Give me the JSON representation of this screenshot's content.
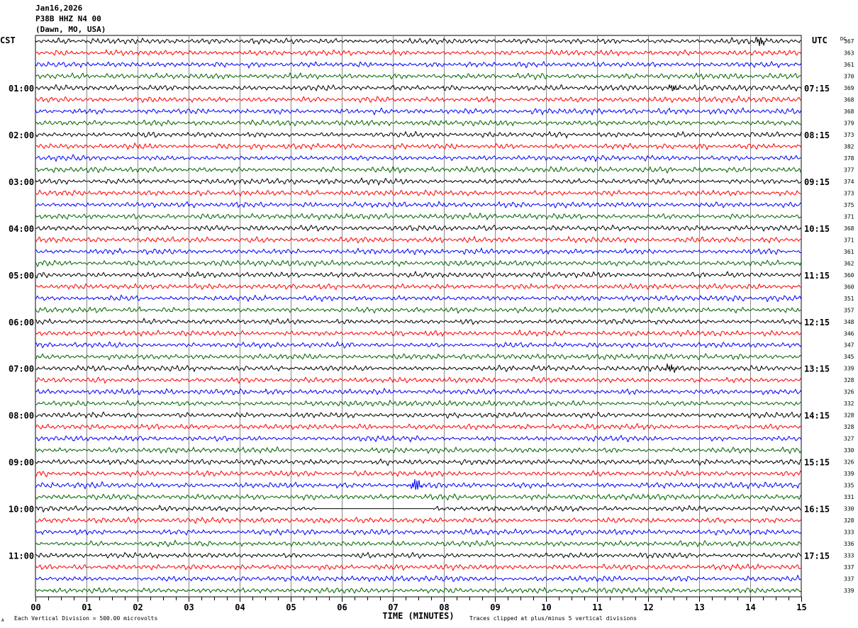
{
  "header": {
    "date": "Jan16,2026",
    "station": "P38B HHZ N4 00",
    "location": "(Dawn, MO, USA)"
  },
  "chart_data": {
    "type": "line",
    "title": "P38B HHZ N4 00 helicorder",
    "left_timezone": "CST",
    "right_timezone": "UTC",
    "dc_label": "DC",
    "xlabel": "TIME (MINUTES)",
    "xlim": [
      0,
      15
    ],
    "x_ticks": [
      "00",
      "01",
      "02",
      "03",
      "04",
      "05",
      "06",
      "07",
      "08",
      "09",
      "10",
      "11",
      "12",
      "13",
      "14",
      "15"
    ],
    "minor_ticks_per_minute": 4,
    "left_hour_labels": [
      {
        "trace": 4,
        "label": "01:00"
      },
      {
        "trace": 8,
        "label": "02:00"
      },
      {
        "trace": 12,
        "label": "03:00"
      },
      {
        "trace": 16,
        "label": "04:00"
      },
      {
        "trace": 20,
        "label": "05:00"
      },
      {
        "trace": 24,
        "label": "06:00"
      },
      {
        "trace": 28,
        "label": "07:00"
      },
      {
        "trace": 32,
        "label": "08:00"
      },
      {
        "trace": 36,
        "label": "09:00"
      },
      {
        "trace": 40,
        "label": "10:00"
      },
      {
        "trace": 44,
        "label": "11:00"
      }
    ],
    "right_hour_labels": [
      {
        "trace": 4,
        "label": "07:15"
      },
      {
        "trace": 8,
        "label": "08:15"
      },
      {
        "trace": 12,
        "label": "09:15"
      },
      {
        "trace": 16,
        "label": "10:15"
      },
      {
        "trace": 20,
        "label": "11:15"
      },
      {
        "trace": 24,
        "label": "12:15"
      },
      {
        "trace": 28,
        "label": "13:15"
      },
      {
        "trace": 32,
        "label": "14:15"
      },
      {
        "trace": 36,
        "label": "15:15"
      },
      {
        "trace": 40,
        "label": "16:15"
      },
      {
        "trace": 44,
        "label": "17:15"
      }
    ],
    "trace_colors": [
      "#000000",
      "#ff0000",
      "#0000ff",
      "#006400"
    ],
    "dc_values": [
      367,
      363,
      361,
      370,
      369,
      368,
      368,
      379,
      373,
      382,
      378,
      377,
      374,
      373,
      375,
      371,
      368,
      371,
      361,
      362,
      360,
      360,
      351,
      357,
      348,
      346,
      347,
      345,
      339,
      328,
      326,
      332,
      328,
      328,
      327,
      330,
      326,
      339,
      335,
      331,
      330,
      328,
      333,
      336,
      333,
      337,
      337,
      339
    ],
    "events": [
      {
        "trace": 0,
        "minute": 14.2,
        "amplitude": 2.0
      },
      {
        "trace": 4,
        "minute": 12.5,
        "amplitude": 1.5
      },
      {
        "trace": 28,
        "minute": 12.45,
        "amplitude": 1.8
      },
      {
        "trace": 38,
        "minute": 7.45,
        "amplitude": 3.0
      }
    ],
    "gaps": [
      {
        "trace": 40,
        "from_minute": 5.5,
        "to_minute": 7.8
      }
    ],
    "footer_left": "Each Vertical Division =  500.00 microvolts",
    "footer_right": "Traces clipped at plus/minus 5 vertical divisions",
    "corner_mark": "A"
  }
}
